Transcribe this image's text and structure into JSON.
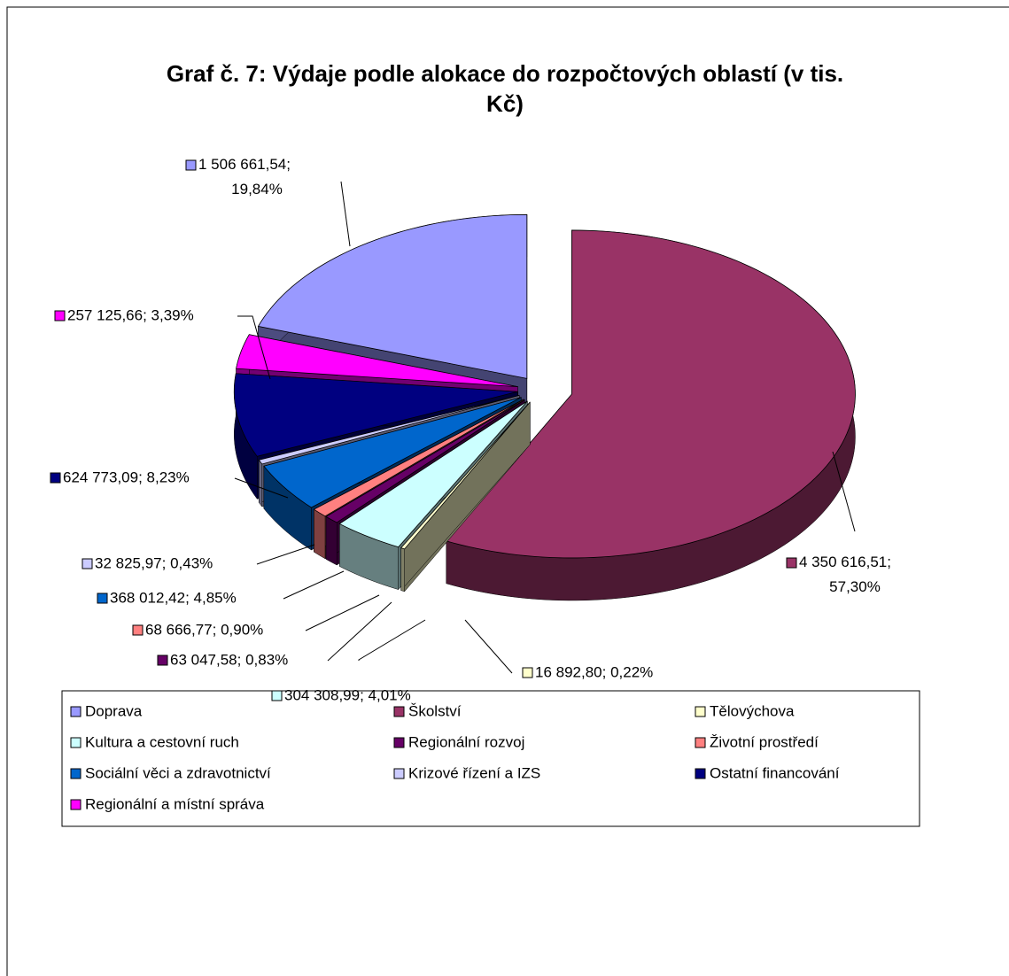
{
  "chart_data": {
    "type": "pie3d",
    "title": "Graf č. 7: Výdaje podle alokace do rozpočtových oblastí (v tis. Kč)",
    "categories": [
      "Doprava",
      "Školství",
      "Tělovýchova",
      "Kultura a cestovní ruch",
      "Regionální rozvoj",
      "Životní prostředí",
      "Sociální věci a zdravotnictví",
      "Krizové řízení a IZS",
      "Ostatní financování",
      "Regionální a místní správa"
    ],
    "values": [
      1506661.54,
      4350616.51,
      16892.8,
      304308.99,
      63047.58,
      68666.77,
      368012.42,
      32825.97,
      624773.09,
      257125.66
    ],
    "value_labels": [
      "1 506 661,54; 19,84%",
      "4 350 616,51; 57,30%",
      "16 892,80; 0,22%",
      "304 308,99; 4,01%",
      "63 047,58; 0,83%",
      "68 666,77; 0,90%",
      "368 012,42; 4,85%",
      "32 825,97; 0,43%",
      "624 773,09; 8,23%",
      "257 125,66; 3,39%"
    ],
    "colors": [
      "#9999ff",
      "#993366",
      "#ffffcc",
      "#ccffff",
      "#660066",
      "#ff8080",
      "#0066cc",
      "#ccccff",
      "#000080",
      "#ff00ff"
    ],
    "legend": "bottom"
  }
}
